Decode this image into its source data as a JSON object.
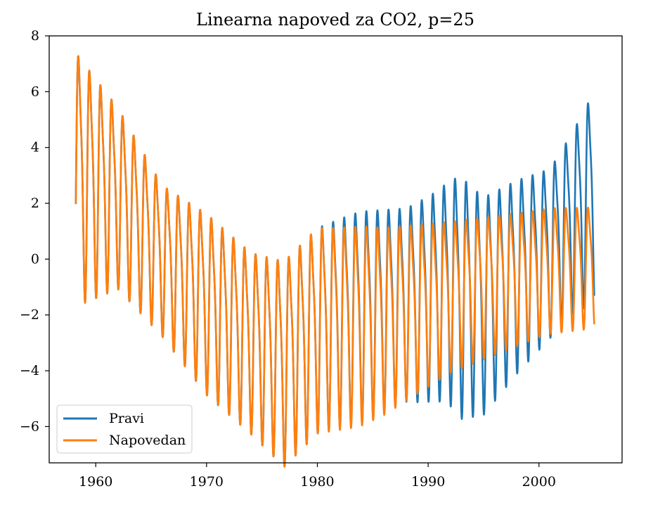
{
  "chart_data": {
    "type": "line",
    "title": "Linearna napoved za CO2, p=25",
    "xlabel": "",
    "ylabel": "",
    "xlim": [
      1955.8,
      2007.5
    ],
    "ylim": [
      -7.3,
      8.0
    ],
    "xticks": [
      1960,
      1970,
      1980,
      1990,
      2000
    ],
    "xtick_labels": [
      "1960",
      "1970",
      "1980",
      "1990",
      "2000"
    ],
    "yticks": [
      -6,
      -4,
      -2,
      0,
      2,
      4,
      6,
      8
    ],
    "ytick_labels": [
      "−6",
      "−4",
      "−2",
      "0",
      "2",
      "4",
      "6",
      "8"
    ],
    "grid": false,
    "legend_position": "lower-left",
    "x_start": 1958.2,
    "x_end": 2005.0,
    "series": [
      {
        "name": "Pravi",
        "color": "#1f77b4",
        "trend_knots": [
          [
            1958.2,
            3.3
          ],
          [
            1962,
            2.5
          ],
          [
            1966,
            0.2
          ],
          [
            1970,
            -1.3
          ],
          [
            1974,
            -2.7
          ],
          [
            1977,
            -3.4
          ],
          [
            1980,
            -2.2
          ],
          [
            1983,
            -1.8
          ],
          [
            1986,
            -1.5
          ],
          [
            1989,
            -1.2
          ],
          [
            1992,
            -0.8
          ],
          [
            1995,
            -1.3
          ],
          [
            1998,
            -0.3
          ],
          [
            2001,
            0.5
          ],
          [
            2003,
            1.6
          ],
          [
            2005,
            2.6
          ]
        ],
        "amplitude_knots": [
          [
            1958.2,
            4.2
          ],
          [
            1962,
            3.0
          ],
          [
            1966,
            2.5
          ],
          [
            1970,
            3.0
          ],
          [
            1974,
            3.0
          ],
          [
            1977,
            3.4
          ],
          [
            1980,
            3.4
          ],
          [
            1984,
            3.5
          ],
          [
            1988,
            3.2
          ],
          [
            1991,
            3.5
          ],
          [
            1993,
            4.0
          ],
          [
            1995,
            3.6
          ],
          [
            1998,
            3.2
          ],
          [
            2001,
            2.8
          ],
          [
            2003,
            3.0
          ],
          [
            2005,
            3.5
          ]
        ]
      },
      {
        "name": "Napovedan",
        "color": "#ff7f0e",
        "trend_knots": [
          [
            1958.2,
            3.3
          ],
          [
            1962,
            2.5
          ],
          [
            1966,
            0.2
          ],
          [
            1970,
            -1.3
          ],
          [
            1974,
            -2.7
          ],
          [
            1977,
            -3.4
          ],
          [
            1980,
            -2.2
          ],
          [
            1983,
            -2.1
          ],
          [
            1986,
            -1.9
          ],
          [
            1989,
            -1.5
          ],
          [
            1992,
            -1.1
          ],
          [
            1995,
            -0.8
          ],
          [
            1998,
            -0.5
          ],
          [
            2001,
            -0.2
          ],
          [
            2005,
            -0.1
          ]
        ],
        "amplitude_knots": [
          [
            1958.2,
            4.2
          ],
          [
            1962,
            3.0
          ],
          [
            1966,
            2.5
          ],
          [
            1970,
            3.0
          ],
          [
            1974,
            3.0
          ],
          [
            1977,
            3.4
          ],
          [
            1980,
            3.4
          ],
          [
            1984,
            3.3
          ],
          [
            1988,
            2.9
          ],
          [
            1992,
            2.5
          ],
          [
            1996,
            2.3
          ],
          [
            2000,
            2.1
          ],
          [
            2005,
            2.0
          ]
        ]
      }
    ]
  }
}
